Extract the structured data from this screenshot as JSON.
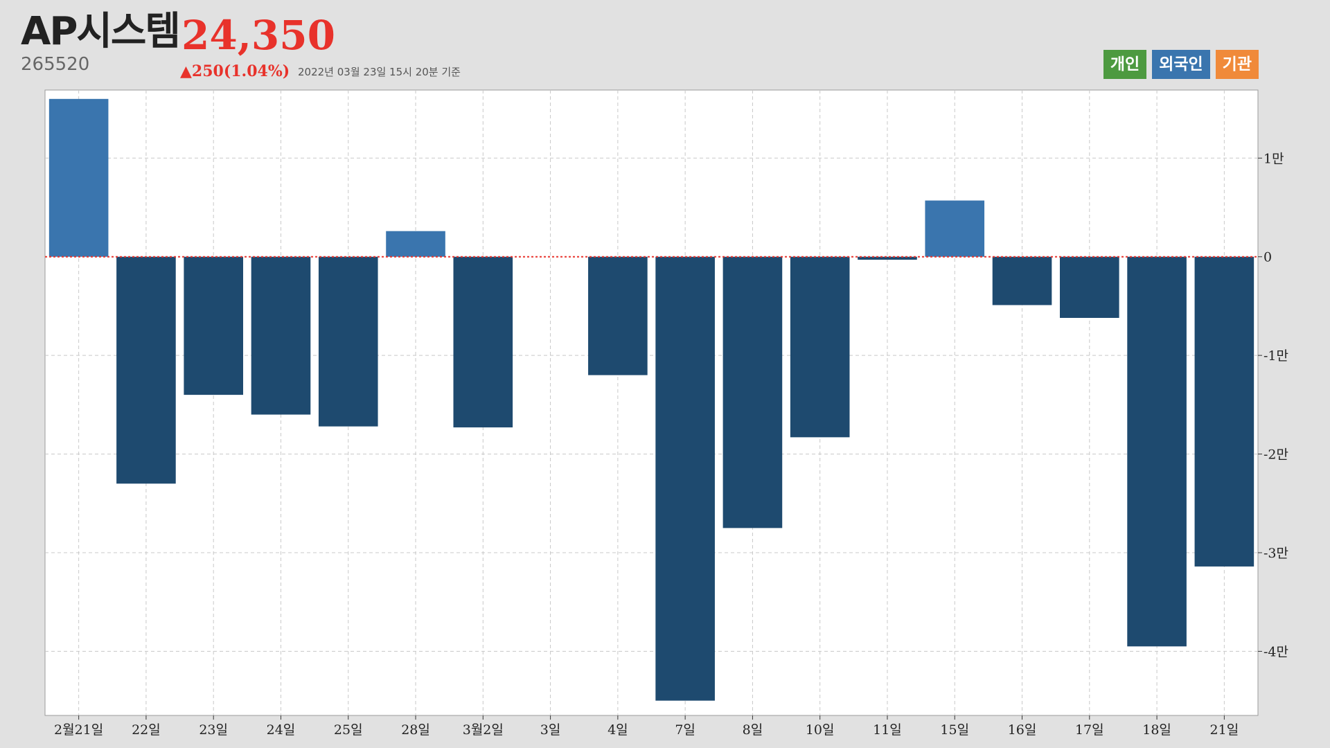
{
  "header": {
    "name": "AP시스템",
    "price": "24,350",
    "code": "265520",
    "change": "▲250(1.04%)",
    "as_of": "2022년 03월 23일 15시 20분 기준"
  },
  "legend": [
    {
      "label": "개인",
      "color": "#4d9a40"
    },
    {
      "label": "외국인",
      "color": "#3a75ae"
    },
    {
      "label": "기관",
      "color": "#f08a3a"
    }
  ],
  "colors": {
    "positive_bar": "#3a75ae",
    "negative_bar": "#1e4a6f",
    "zero_line": "#e8322b",
    "grid": "#c8c8c8"
  },
  "chart_data": {
    "type": "bar",
    "title": "",
    "xlabel": "",
    "ylabel": "",
    "categories": [
      "2월21일",
      "22일",
      "23일",
      "24일",
      "25일",
      "28일",
      "3월2일",
      "3일",
      "4일",
      "7일",
      "8일",
      "10일",
      "11일",
      "15일",
      "16일",
      "17일",
      "18일",
      "21일"
    ],
    "series": [
      {
        "values": [
          16000,
          -23000,
          -14000,
          -16000,
          -17200,
          2600,
          -17300,
          0,
          -12000,
          -45000,
          -27500,
          -18300,
          -300,
          5700,
          -4900,
          -6200,
          -39500,
          -31400
        ]
      }
    ],
    "ylim": [
      -46500,
      16900
    ],
    "y_ticks": [
      10000,
      0,
      -10000,
      -20000,
      -30000,
      -40000
    ],
    "y_tick_labels": [
      "1만",
      "0",
      "-1만",
      "-2만",
      "-3만",
      "-4만"
    ],
    "y_axis_side": "right",
    "grid": true,
    "legend_position": "top-right"
  }
}
